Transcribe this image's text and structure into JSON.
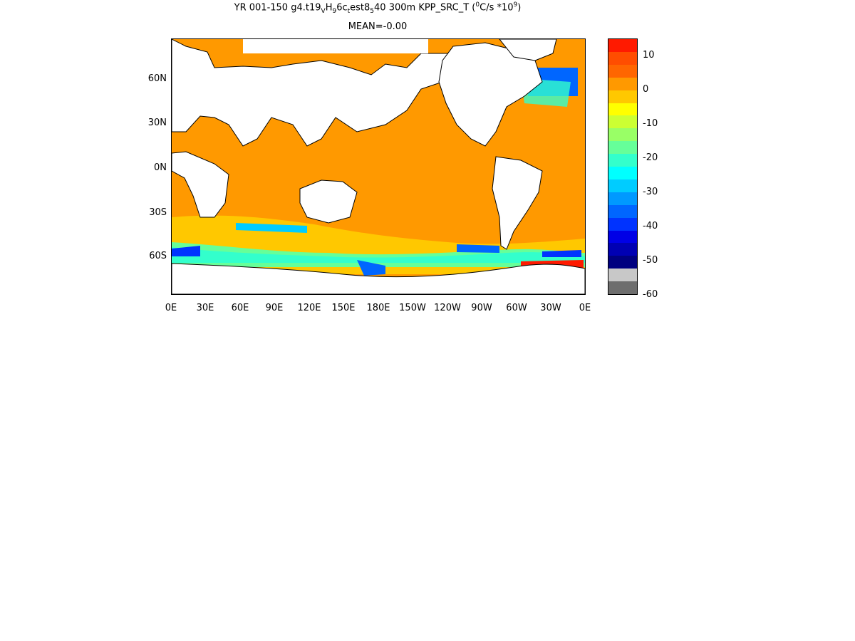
{
  "header": {
    "title_line1": "YR 001-150 g4.t19",
    "title_sub1": "V",
    "title_mid1": "H",
    "title_sub2": "9",
    "title_mid2": "6c",
    "title_sub3": "t",
    "title_mid3": "est8",
    "title_sub4": "5",
    "title_rest": "40 300m KPP_SRC_T (",
    "title_sup1": "0",
    "title_units": "C/s *10",
    "title_sup2": "9",
    "title_close": ")",
    "mean_label": "MEAN=-0.00"
  },
  "axes": {
    "y_ticks": [
      "60N",
      "30N",
      "0N",
      "30S",
      "60S"
    ],
    "x_ticks": [
      "0E",
      "30E",
      "60E",
      "90E",
      "120E",
      "150E",
      "180E",
      "150W",
      "120W",
      "90W",
      "60W",
      "30W",
      "0E"
    ]
  },
  "colorbar": {
    "labels": [
      "10",
      "0",
      "-10",
      "-20",
      "-30",
      "-40",
      "-50",
      "-60"
    ],
    "colors": [
      "#ff1a00",
      "#ff4d00",
      "#ff6600",
      "#ff9900",
      "#ffc800",
      "#ffff00",
      "#ccff33",
      "#99ff66",
      "#66ff99",
      "#33ffcc",
      "#00ffff",
      "#00ccff",
      "#0099ff",
      "#0066ff",
      "#0033ff",
      "#0000e6",
      "#0000b3",
      "#000080",
      "#c8c8c8",
      "#6e6e6e"
    ]
  },
  "map": {
    "region": "global",
    "land_color": "#ffffff",
    "ocean_background_color": "#ff9900"
  }
}
